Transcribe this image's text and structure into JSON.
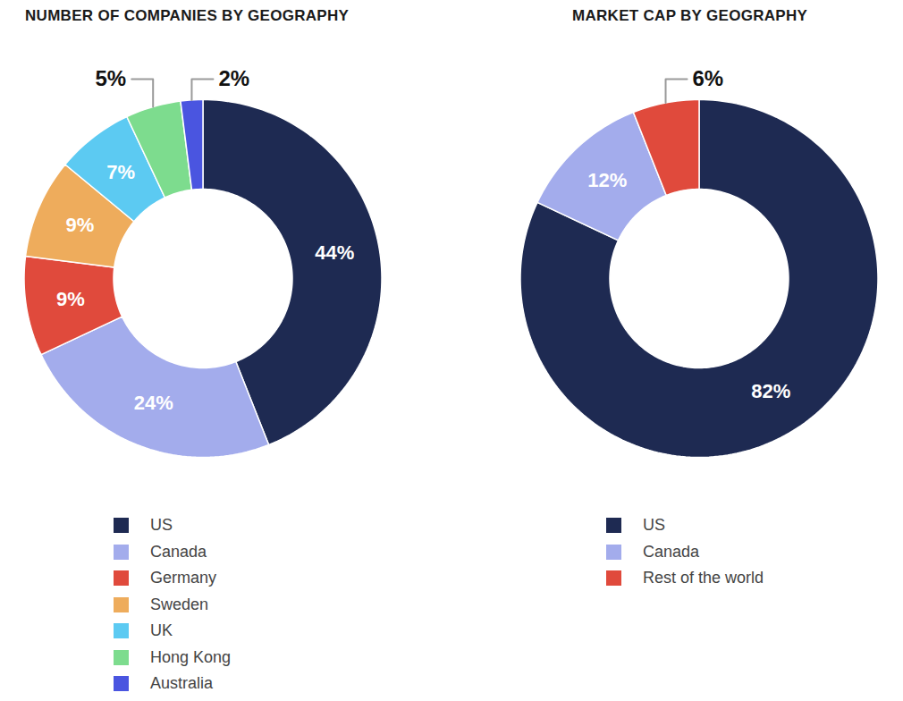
{
  "chart_data": [
    {
      "type": "donut",
      "title": "NUMBER OF COMPANIES BY GEOGRAPHY",
      "categories": [
        "US",
        "Canada",
        "Germany",
        "Sweden",
        "UK",
        "Hong Kong",
        "Australia"
      ],
      "values": [
        44,
        24,
        9,
        9,
        7,
        5,
        2
      ],
      "value_labels": [
        "44%",
        "24%",
        "9%",
        "9%",
        "7%",
        "5%",
        "2%"
      ],
      "colors": [
        "#1e2a52",
        "#a3acec",
        "#e04a3c",
        "#eeac5c",
        "#5ccaf2",
        "#7ddc8e",
        "#4a55e0"
      ],
      "data_labels": true,
      "legend": "bottom"
    },
    {
      "type": "donut",
      "title": "MARKET CAP BY GEOGRAPHY",
      "categories": [
        "US",
        "Canada",
        "Rest of the world"
      ],
      "values": [
        82,
        12,
        6
      ],
      "value_labels": [
        "82%",
        "12%",
        "6%"
      ],
      "colors": [
        "#1e2a52",
        "#a3acec",
        "#e04a3c"
      ],
      "data_labels": true,
      "legend": "bottom"
    }
  ]
}
